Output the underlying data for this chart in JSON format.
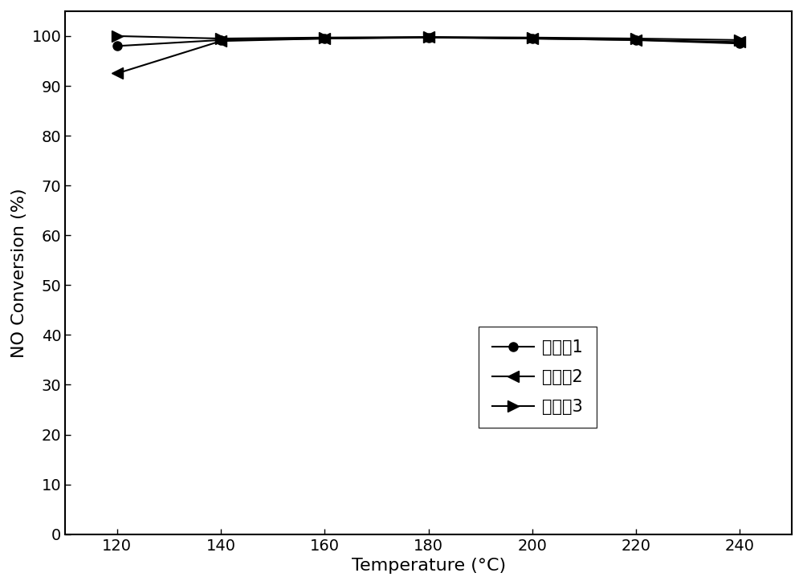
{
  "temperatures": [
    120,
    140,
    160,
    180,
    200,
    220,
    240
  ],
  "series": [
    {
      "label": "实施例1",
      "values": [
        98.0,
        99.2,
        99.5,
        99.7,
        99.5,
        99.2,
        98.5
      ],
      "color": "#000000",
      "marker": "o",
      "marker_size": 8,
      "linestyle": "-"
    },
    {
      "label": "实施例2",
      "values": [
        92.5,
        99.0,
        99.5,
        99.8,
        99.5,
        99.2,
        98.8
      ],
      "color": "#000000",
      "marker": "<",
      "marker_size": 10,
      "linestyle": "-"
    },
    {
      "label": "实施例3",
      "values": [
        100.0,
        99.5,
        99.7,
        99.8,
        99.7,
        99.5,
        99.2
      ],
      "color": "#000000",
      "marker": ">",
      "marker_size": 10,
      "linestyle": "-"
    }
  ],
  "xlabel": "Temperature (°C)",
  "ylabel": "NO Conversion (%)",
  "xlim": [
    110,
    250
  ],
  "ylim": [
    0,
    105
  ],
  "xticks": [
    120,
    140,
    160,
    180,
    200,
    220,
    240
  ],
  "yticks": [
    0,
    10,
    20,
    30,
    40,
    50,
    60,
    70,
    80,
    90,
    100
  ],
  "background_color": "#ffffff",
  "axis_fontsize": 16,
  "tick_fontsize": 14,
  "legend_fontsize": 15
}
